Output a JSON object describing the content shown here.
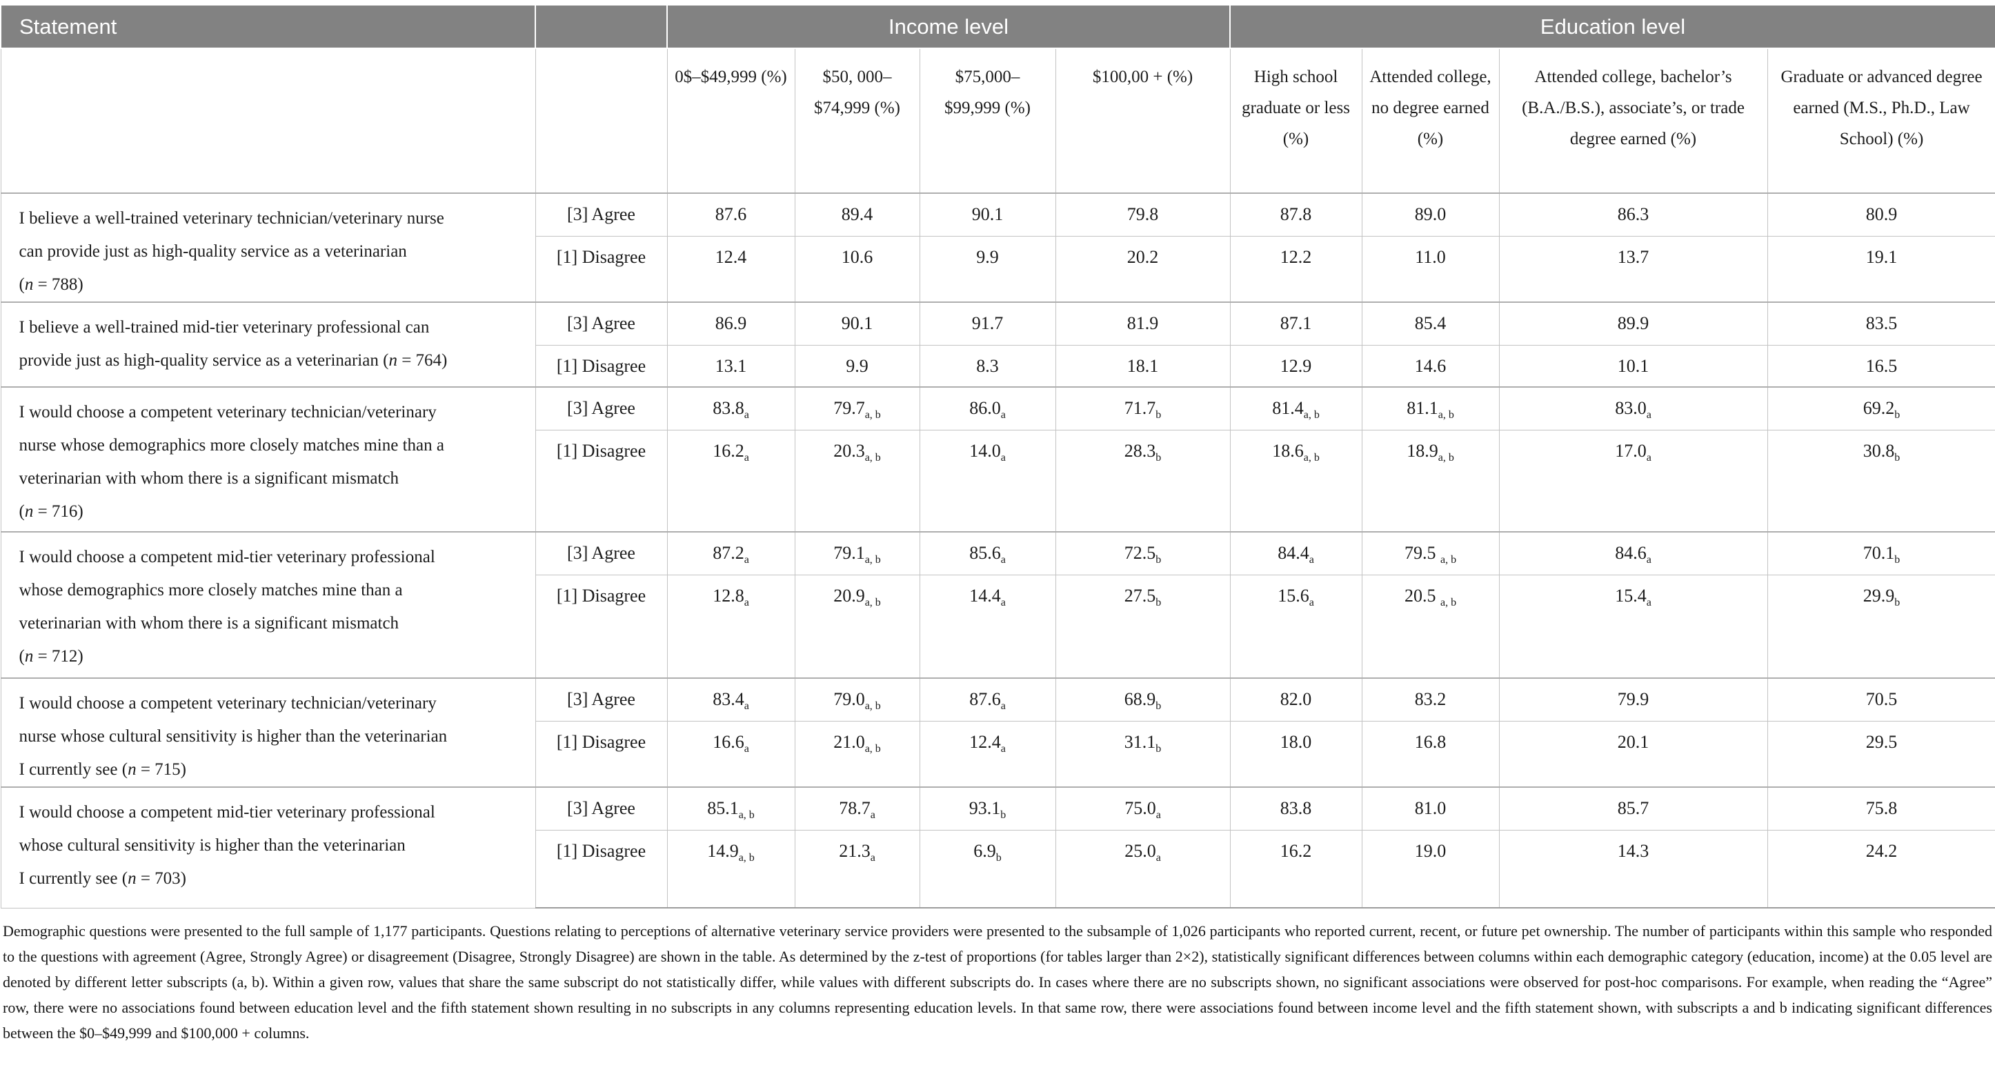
{
  "table": {
    "band": {
      "statement_header": "Statement",
      "income_group_header": "Income level",
      "education_group_header": "Education level"
    },
    "column_headers": {
      "income": [
        "0$–$49,999 (%)",
        "$50, 000– $74,999 (%)",
        "$75,000– $99,999 (%)",
        "$100,00 + (%)"
      ],
      "education": [
        "High school graduate or less (%)",
        "Attended college, no degree earned (%)",
        "Attended college, bachelor’s (B.A./B.S.), associate’s, or trade degree earned (%)",
        "Graduate or advanced degree earned (M.S., Ph.D., Law School) (%)"
      ]
    },
    "response_labels": {
      "agree": "[3] Agree",
      "disagree": "[1] Disagree"
    },
    "rows": [
      {
        "statement_lines": [
          "I believe a well-trained veterinary technician/veterinary nurse",
          "can provide just as high-quality service as a veterinarian",
          "(n = 788)"
        ],
        "agree": [
          {
            "v": "87.6"
          },
          {
            "v": "89.4"
          },
          {
            "v": "90.1"
          },
          {
            "v": "79.8"
          },
          {
            "v": "87.8"
          },
          {
            "v": "89.0"
          },
          {
            "v": "86.3"
          },
          {
            "v": "80.9"
          }
        ],
        "disagree": [
          {
            "v": "12.4"
          },
          {
            "v": "10.6"
          },
          {
            "v": "9.9"
          },
          {
            "v": "20.2"
          },
          {
            "v": "12.2"
          },
          {
            "v": "11.0"
          },
          {
            "v": "13.7"
          },
          {
            "v": "19.1"
          }
        ]
      },
      {
        "statement_lines": [
          "I believe a well-trained mid-tier veterinary professional can",
          "provide just as high-quality service as a veterinarian (n = 764)"
        ],
        "agree": [
          {
            "v": "86.9"
          },
          {
            "v": "90.1"
          },
          {
            "v": "91.7"
          },
          {
            "v": "81.9"
          },
          {
            "v": "87.1"
          },
          {
            "v": "85.4"
          },
          {
            "v": "89.9"
          },
          {
            "v": "83.5"
          }
        ],
        "disagree": [
          {
            "v": "13.1"
          },
          {
            "v": "9.9"
          },
          {
            "v": "8.3"
          },
          {
            "v": "18.1"
          },
          {
            "v": "12.9"
          },
          {
            "v": "14.6"
          },
          {
            "v": "10.1"
          },
          {
            "v": "16.5"
          }
        ]
      },
      {
        "statement_lines": [
          "I would choose a competent veterinary technician/veterinary",
          "nurse whose demographics more closely matches mine than a",
          "veterinarian with whom there is a significant mismatch",
          "(n = 716)"
        ],
        "agree": [
          {
            "v": "83.8",
            "s": "a"
          },
          {
            "v": "79.7",
            "s": "a, b"
          },
          {
            "v": "86.0",
            "s": "a"
          },
          {
            "v": "71.7",
            "s": "b"
          },
          {
            "v": "81.4",
            "s": "a, b"
          },
          {
            "v": "81.1",
            "s": "a, b"
          },
          {
            "v": "83.0",
            "s": "a"
          },
          {
            "v": "69.2",
            "s": "b"
          }
        ],
        "disagree": [
          {
            "v": "16.2",
            "s": "a"
          },
          {
            "v": "20.3",
            "s": "a, b"
          },
          {
            "v": "14.0",
            "s": "a"
          },
          {
            "v": "28.3",
            "s": "b"
          },
          {
            "v": "18.6",
            "s": "a, b"
          },
          {
            "v": "18.9",
            "s": "a, b"
          },
          {
            "v": "17.0",
            "s": "a"
          },
          {
            "v": "30.8",
            "s": "b"
          }
        ]
      },
      {
        "statement_lines": [
          "I would choose a competent mid-tier veterinary professional",
          "whose demographics more closely matches mine than a",
          "veterinarian with whom there is a significant mismatch",
          "(n = 712)"
        ],
        "agree": [
          {
            "v": "87.2",
            "s": "a"
          },
          {
            "v": "79.1",
            "s": "a, b"
          },
          {
            "v": "85.6",
            "s": "a"
          },
          {
            "v": "72.5",
            "s": "b"
          },
          {
            "v": "84.4",
            "s": "a"
          },
          {
            "v": "79.5 ",
            "s": "a, b"
          },
          {
            "v": "84.6",
            "s": "a"
          },
          {
            "v": "70.1",
            "s": "b"
          }
        ],
        "disagree": [
          {
            "v": "12.8",
            "s": "a"
          },
          {
            "v": "20.9",
            "s": "a, b"
          },
          {
            "v": "14.4",
            "s": "a"
          },
          {
            "v": "27.5",
            "s": "b"
          },
          {
            "v": "15.6",
            "s": "a"
          },
          {
            "v": "20.5 ",
            "s": "a, b"
          },
          {
            "v": "15.4",
            "s": "a"
          },
          {
            "v": "29.9",
            "s": "b"
          }
        ]
      },
      {
        "statement_lines": [
          "I would choose a competent veterinary technician/veterinary",
          "nurse whose cultural sensitivity is higher than the veterinarian",
          "I currently see (n = 715)"
        ],
        "agree": [
          {
            "v": "83.4",
            "s": "a"
          },
          {
            "v": "79.0",
            "s": "a, b"
          },
          {
            "v": "87.6",
            "s": "a"
          },
          {
            "v": "68.9",
            "s": "b"
          },
          {
            "v": "82.0"
          },
          {
            "v": "83.2"
          },
          {
            "v": "79.9"
          },
          {
            "v": "70.5"
          }
        ],
        "disagree": [
          {
            "v": "16.6",
            "s": "a"
          },
          {
            "v": "21.0",
            "s": "a, b"
          },
          {
            "v": "12.4",
            "s": "a"
          },
          {
            "v": "31.1",
            "s": "b"
          },
          {
            "v": "18.0"
          },
          {
            "v": "16.8"
          },
          {
            "v": "20.1"
          },
          {
            "v": "29.5"
          }
        ]
      },
      {
        "statement_lines": [
          "I would choose a competent mid-tier veterinary professional",
          "whose cultural sensitivity is higher than the veterinarian",
          "I currently see (n = 703)"
        ],
        "agree": [
          {
            "v": "85.1",
            "s": "a, b"
          },
          {
            "v": "78.7",
            "s": "a"
          },
          {
            "v": "93.1",
            "s": "b"
          },
          {
            "v": "75.0",
            "s": "a"
          },
          {
            "v": "83.8"
          },
          {
            "v": "81.0"
          },
          {
            "v": "85.7"
          },
          {
            "v": "75.8"
          }
        ],
        "disagree": [
          {
            "v": "14.9",
            "s": "a, b"
          },
          {
            "v": "21.3",
            "s": "a"
          },
          {
            "v": "6.9",
            "s": "b"
          },
          {
            "v": "25.0",
            "s": "a"
          },
          {
            "v": "16.2"
          },
          {
            "v": "19.0"
          },
          {
            "v": "14.3"
          },
          {
            "v": "24.2"
          }
        ]
      }
    ]
  },
  "footnote": {
    "text": "Demographic questions were presented to the full sample of 1,177 participants. Questions relating to perceptions of alternative veterinary service providers were presented to the subsample of 1,026 participants who reported current, recent, or future pet ownership. The number of participants within this sample who responded to the questions with agreement (Agree, Strongly Agree) or disagreement (Disagree, Strongly Disagree) are shown in the table. As determined by the z-test of proportions (for tables larger than 2×2), statistically significant differences between columns within each demographic category (education, income) at the 0.05 level are denoted by different letter subscripts (a, b). Within a given row, values that share the same subscript do not statistically differ, while values with different subscripts do. In cases where there are no subscripts shown, no significant associations were observed for post-hoc comparisons. For example, when reading the “Agree” row, there were no associations found between education level and the fifth statement shown resulting in no subscripts in any columns representing education levels. In that same row, there were associations found between income level and the fifth statement shown, with subscripts a and b indicating significant differences between the $0–$49,999 and $100,000 + columns."
  }
}
